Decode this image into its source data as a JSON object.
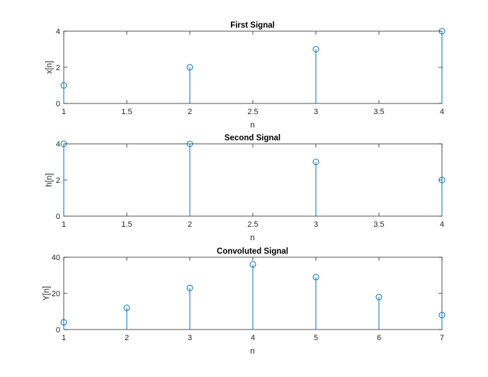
{
  "figure": {
    "background": "#ffffff",
    "axis_color": "#262626",
    "series_color": "#0072BD"
  },
  "chart_data": [
    {
      "type": "stem",
      "title": "First Signal",
      "xlabel": "n",
      "ylabel": "x[n]",
      "xlim": [
        1,
        4
      ],
      "ylim": [
        0,
        4
      ],
      "xticks": [
        1,
        1.5,
        2,
        2.5,
        3,
        3.5,
        4
      ],
      "xtick_labels": [
        "1",
        "1.5",
        "2",
        "2.5",
        "3",
        "3.5",
        "4"
      ],
      "yticks": [
        0,
        2,
        4
      ],
      "ytick_labels": [
        "0",
        "2",
        "4"
      ],
      "grid": false,
      "x": [
        1,
        2,
        3,
        4
      ],
      "y": [
        1,
        2,
        3,
        4
      ]
    },
    {
      "type": "stem",
      "title": "Second Signal",
      "xlabel": "n",
      "ylabel": "h[n]",
      "xlim": [
        1,
        4
      ],
      "ylim": [
        0,
        4
      ],
      "xticks": [
        1,
        1.5,
        2,
        2.5,
        3,
        3.5,
        4
      ],
      "xtick_labels": [
        "1",
        "1.5",
        "2",
        "2.5",
        "3",
        "3.5",
        "4"
      ],
      "yticks": [
        0,
        2,
        4
      ],
      "ytick_labels": [
        "0",
        "2",
        "4"
      ],
      "grid": false,
      "x": [
        1,
        2,
        3,
        4
      ],
      "y": [
        4,
        4,
        3,
        2
      ]
    },
    {
      "type": "stem",
      "title": "Convoluted Signal",
      "xlabel": "n",
      "ylabel": "Y[n]",
      "xlim": [
        1,
        7
      ],
      "ylim": [
        0,
        40
      ],
      "xticks": [
        1,
        2,
        3,
        4,
        5,
        6,
        7
      ],
      "xtick_labels": [
        "1",
        "2",
        "3",
        "4",
        "5",
        "6",
        "7"
      ],
      "yticks": [
        0,
        20,
        40
      ],
      "ytick_labels": [
        "0",
        "20",
        "40"
      ],
      "grid": false,
      "x": [
        1,
        2,
        3,
        4,
        5,
        6,
        7
      ],
      "y": [
        4,
        12,
        23,
        36,
        29,
        18,
        8
      ]
    }
  ]
}
